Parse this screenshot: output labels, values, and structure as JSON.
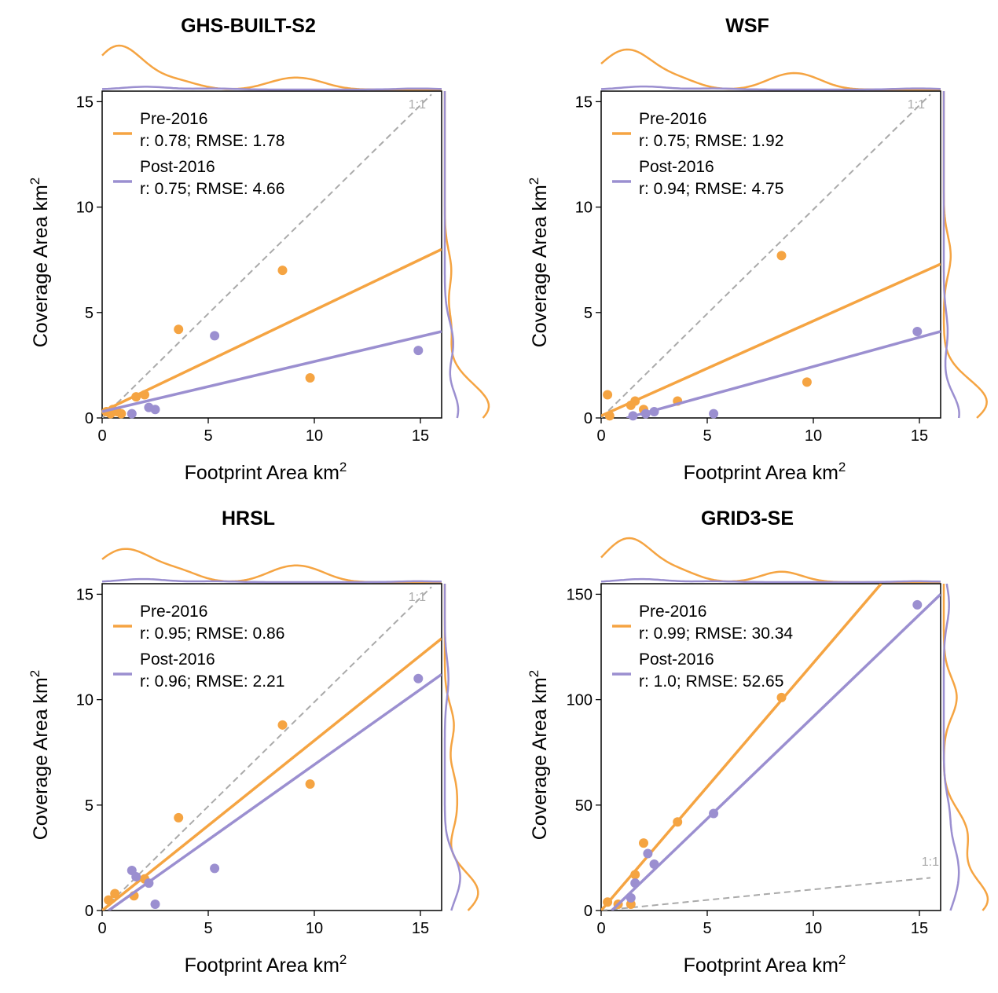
{
  "colors": {
    "pre": "#f5a442",
    "post": "#9b8fd0",
    "identity": "#aaaaaa"
  },
  "chart_data": [
    {
      "type": "scatter",
      "title": "GHS-BUILT-S2",
      "xlabel": "Footprint Area km",
      "xlabel_sup": "2",
      "ylabel": "Coverage Area km",
      "ylabel_sup": "2",
      "xlim": [
        0,
        16
      ],
      "ylim": [
        0,
        15.5
      ],
      "xticks": [
        0,
        5,
        10,
        15
      ],
      "yticks": [
        0,
        5,
        10,
        15
      ],
      "identity_label": "1:1",
      "identity_label_pos": "top",
      "legend": "top-left",
      "series": [
        {
          "name": "Pre-2016",
          "stats": "r: 0.78; RMSE: 1.78",
          "color": "#f5a442",
          "points": [
            [
              0.2,
              0.3
            ],
            [
              0.4,
              0.2
            ],
            [
              0.5,
              0.4
            ],
            [
              0.7,
              0.3
            ],
            [
              0.9,
              0.2
            ],
            [
              1.6,
              1.0
            ],
            [
              2.0,
              1.1
            ],
            [
              3.6,
              4.2
            ],
            [
              8.5,
              7.0
            ],
            [
              9.8,
              1.9
            ]
          ],
          "fit": [
            [
              0,
              0.3
            ],
            [
              16,
              8.0
            ]
          ]
        },
        {
          "name": "Post-2016",
          "stats": "r: 0.75; RMSE: 4.66",
          "color": "#9b8fd0",
          "points": [
            [
              1.4,
              0.2
            ],
            [
              2.2,
              0.5
            ],
            [
              2.5,
              0.4
            ],
            [
              5.3,
              3.9
            ],
            [
              14.9,
              3.2
            ]
          ],
          "fit": [
            [
              0,
              0.3
            ],
            [
              16,
              4.1
            ]
          ]
        }
      ]
    },
    {
      "type": "scatter",
      "title": "WSF",
      "xlabel": "Footprint Area km",
      "xlabel_sup": "2",
      "ylabel": "Coverage Area km",
      "ylabel_sup": "2",
      "xlim": [
        0,
        16
      ],
      "ylim": [
        0,
        15.5
      ],
      "xticks": [
        0,
        5,
        10,
        15
      ],
      "yticks": [
        0,
        5,
        10,
        15
      ],
      "identity_label": "1:1",
      "identity_label_pos": "top",
      "legend": "top-left",
      "series": [
        {
          "name": "Pre-2016",
          "stats": "r: 0.75; RMSE: 1.92",
          "color": "#f5a442",
          "points": [
            [
              0.3,
              1.1
            ],
            [
              0.4,
              0.1
            ],
            [
              1.4,
              0.6
            ],
            [
              1.6,
              0.8
            ],
            [
              2.0,
              0.4
            ],
            [
              3.6,
              0.8
            ],
            [
              8.5,
              7.7
            ],
            [
              9.7,
              1.7
            ]
          ],
          "fit": [
            [
              0,
              0.1
            ],
            [
              16,
              7.3
            ]
          ]
        },
        {
          "name": "Post-2016",
          "stats": "r: 0.94; RMSE: 4.75",
          "color": "#9b8fd0",
          "points": [
            [
              1.5,
              0.1
            ],
            [
              2.1,
              0.2
            ],
            [
              2.5,
              0.3
            ],
            [
              5.3,
              0.2
            ],
            [
              14.9,
              4.1
            ]
          ],
          "fit": [
            [
              1.2,
              0.0
            ],
            [
              16,
              4.1
            ]
          ]
        }
      ]
    },
    {
      "type": "scatter",
      "title": "HRSL",
      "xlabel": "Footprint Area km",
      "xlabel_sup": "2",
      "ylabel": "Coverage Area km",
      "ylabel_sup": "2",
      "xlim": [
        0,
        16
      ],
      "ylim": [
        0,
        15.5
      ],
      "xticks": [
        0,
        5,
        10,
        15
      ],
      "yticks": [
        0,
        5,
        10,
        15
      ],
      "identity_label": "1:1",
      "identity_label_pos": "top",
      "legend": "top-left",
      "series": [
        {
          "name": "Pre-2016",
          "stats": "r: 0.95; RMSE: 0.86",
          "color": "#f5a442",
          "points": [
            [
              0.3,
              0.5
            ],
            [
              0.6,
              0.8
            ],
            [
              1.5,
              0.7
            ],
            [
              2.0,
              1.5
            ],
            [
              3.6,
              4.4
            ],
            [
              8.5,
              8.8
            ],
            [
              9.8,
              6.0
            ]
          ],
          "fit": [
            [
              0,
              0.0
            ],
            [
              16,
              12.9
            ]
          ]
        },
        {
          "name": "Post-2016",
          "stats": "r: 0.96; RMSE: 2.21",
          "color": "#9b8fd0",
          "points": [
            [
              1.4,
              1.9
            ],
            [
              1.6,
              1.6
            ],
            [
              2.2,
              1.3
            ],
            [
              2.5,
              0.3
            ],
            [
              5.3,
              2.0
            ],
            [
              14.9,
              11.0
            ]
          ],
          "fit": [
            [
              0.3,
              0.0
            ],
            [
              16,
              11.2
            ]
          ]
        }
      ]
    },
    {
      "type": "scatter",
      "title": "GRID3-SE",
      "xlabel": "Footprint Area km",
      "xlabel_sup": "2",
      "ylabel": "Coverage Area km",
      "ylabel_sup": "2",
      "xlim": [
        0,
        16
      ],
      "ylim": [
        0,
        155
      ],
      "xticks": [
        0,
        5,
        10,
        15
      ],
      "yticks": [
        0,
        50,
        100,
        150
      ],
      "identity_label": "1:1",
      "identity_label_pos": "bottom",
      "legend": "top-left",
      "series": [
        {
          "name": "Pre-2016",
          "stats": "r: 0.99; RMSE: 30.34",
          "color": "#f5a442",
          "points": [
            [
              0.3,
              4
            ],
            [
              0.8,
              3
            ],
            [
              1.4,
              3
            ],
            [
              1.6,
              17
            ],
            [
              2.0,
              32
            ],
            [
              3.6,
              42
            ],
            [
              8.5,
              101
            ]
          ],
          "fit": [
            [
              0,
              0
            ],
            [
              13.2,
              155
            ]
          ]
        },
        {
          "name": "Post-2016",
          "stats": "r: 1.0; RMSE: 52.65",
          "color": "#9b8fd0",
          "points": [
            [
              1.4,
              6
            ],
            [
              1.6,
              13
            ],
            [
              2.2,
              27
            ],
            [
              2.5,
              22
            ],
            [
              5.3,
              46
            ],
            [
              14.9,
              145
            ]
          ],
          "fit": [
            [
              0.5,
              0
            ],
            [
              16,
              150
            ]
          ]
        }
      ]
    }
  ]
}
